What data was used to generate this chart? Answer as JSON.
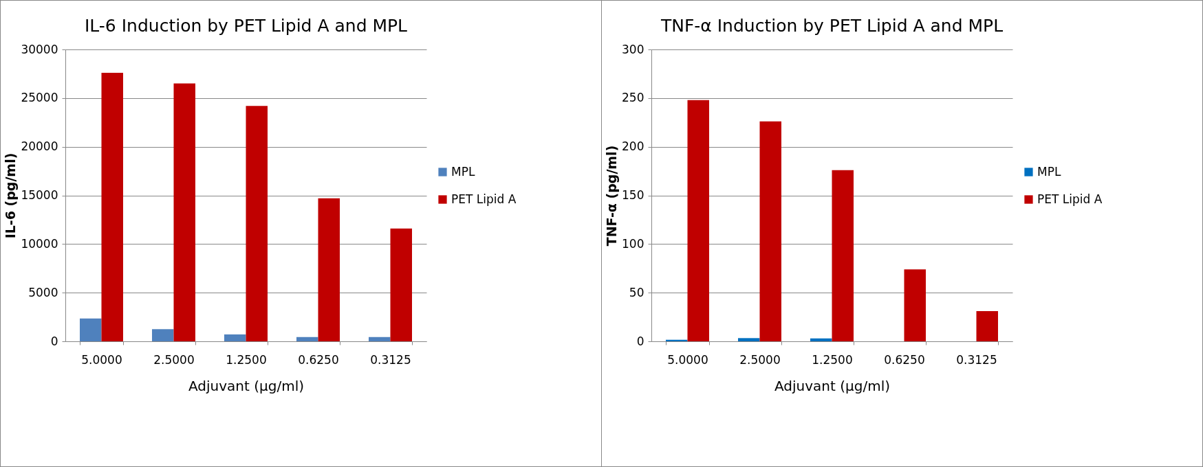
{
  "chart_data": [
    {
      "type": "bar",
      "title": "IL-6 Induction by PET Lipid A and MPL",
      "xlabel": "Adjuvant (μg/ml)",
      "ylabel": "IL-6 (pg/ml)",
      "categories": [
        "5.0000",
        "2.5000",
        "1.2500",
        "0.6250",
        "0.3125"
      ],
      "series": [
        {
          "name": "MPL",
          "color": "#4f81bd",
          "values": [
            2340,
            1250,
            710,
            440,
            440
          ]
        },
        {
          "name": "PET Lipid A",
          "color": "#c00000",
          "values": [
            27600,
            26500,
            24200,
            14700,
            11600
          ]
        }
      ],
      "ylim": [
        0,
        30000
      ],
      "yticks": [
        0,
        5000,
        10000,
        15000,
        20000,
        25000,
        30000
      ],
      "grid": "y",
      "legend": "right"
    },
    {
      "type": "bar",
      "title": "TNF-α Induction by PET Lipid A and MPL",
      "xlabel": "Adjuvant (μg/ml)",
      "ylabel": "TNF-α (pg/ml)",
      "categories": [
        "5.0000",
        "2.5000",
        "1.2500",
        "0.6250",
        "0.3125"
      ],
      "series": [
        {
          "name": "MPL",
          "color": "#0070c0",
          "values": [
            1.6,
            3.3,
            3,
            0,
            0
          ]
        },
        {
          "name": "PET Lipid A",
          "color": "#c00000",
          "values": [
            248,
            226,
            176,
            74,
            31
          ]
        }
      ],
      "ylim": [
        0,
        300
      ],
      "yticks": [
        0,
        50,
        100,
        150,
        200,
        250,
        300
      ],
      "grid": "y",
      "legend": "right"
    }
  ]
}
